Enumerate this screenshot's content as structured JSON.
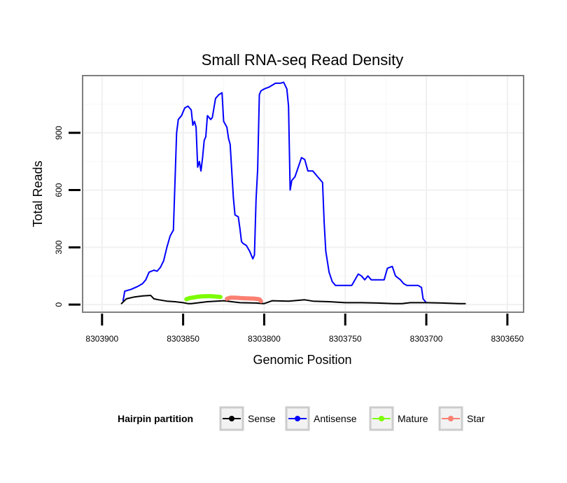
{
  "chart_data": {
    "type": "line",
    "title": "Small RNA-seq Read Density",
    "xlabel": "Genomic Position",
    "ylabel": "Total Reads",
    "x_reversed": true,
    "xlim": [
      8303912,
      8303640
    ],
    "ylim": [
      -40,
      1200
    ],
    "x_ticks": [
      8303900,
      8303850,
      8303800,
      8303750,
      8303700,
      8303650
    ],
    "y_ticks": [
      0,
      300,
      600,
      900
    ],
    "grid": true,
    "legend": {
      "title": "Hairpin partition",
      "position": "bottom",
      "entries": [
        {
          "label": "Sense",
          "color": "#000000"
        },
        {
          "label": "Antisense",
          "color": "#0000ff"
        },
        {
          "label": "Mature",
          "color": "#7cfc00"
        },
        {
          "label": "Star",
          "color": "#fa8072"
        }
      ]
    },
    "series": [
      {
        "name": "Antisense",
        "color": "#0000ff",
        "points": [
          [
            8303887,
            20
          ],
          [
            8303886,
            70
          ],
          [
            8303882,
            80
          ],
          [
            8303878,
            95
          ],
          [
            8303875,
            110
          ],
          [
            8303873,
            130
          ],
          [
            8303871,
            170
          ],
          [
            8303868,
            180
          ],
          [
            8303866,
            175
          ],
          [
            8303864,
            195
          ],
          [
            8303862,
            230
          ],
          [
            8303860,
            300
          ],
          [
            8303858,
            360
          ],
          [
            8303856,
            390
          ],
          [
            8303854,
            900
          ],
          [
            8303853,
            970
          ],
          [
            8303851,
            990
          ],
          [
            8303849,
            1030
          ],
          [
            8303847,
            1040
          ],
          [
            8303845,
            1020
          ],
          [
            8303844,
            940
          ],
          [
            8303843,
            960
          ],
          [
            8303842,
            930
          ],
          [
            8303841,
            720
          ],
          [
            8303840,
            750
          ],
          [
            8303839,
            700
          ],
          [
            8303838,
            770
          ],
          [
            8303837,
            860
          ],
          [
            8303836,
            880
          ],
          [
            8303835,
            990
          ],
          [
            8303833,
            970
          ],
          [
            8303832,
            980
          ],
          [
            8303830,
            1080
          ],
          [
            8303828,
            1100
          ],
          [
            8303826,
            1110
          ],
          [
            8303825,
            960
          ],
          [
            8303823,
            930
          ],
          [
            8303822,
            870
          ],
          [
            8303821,
            840
          ],
          [
            8303819,
            560
          ],
          [
            8303818,
            470
          ],
          [
            8303816,
            460
          ],
          [
            8303815,
            400
          ],
          [
            8303814,
            330
          ],
          [
            8303813,
            320
          ],
          [
            8303811,
            310
          ],
          [
            8303809,
            280
          ],
          [
            8303807,
            240
          ],
          [
            8303806,
            260
          ],
          [
            8303805,
            550
          ],
          [
            8303804,
            710
          ],
          [
            8303803,
            1100
          ],
          [
            8303802,
            1120
          ],
          [
            8303800,
            1130
          ],
          [
            8303797,
            1140
          ],
          [
            8303795,
            1150
          ],
          [
            8303793,
            1160
          ],
          [
            8303790,
            1160
          ],
          [
            8303788,
            1165
          ],
          [
            8303786,
            1130
          ],
          [
            8303785,
            1040
          ],
          [
            8303784,
            600
          ],
          [
            8303783,
            650
          ],
          [
            8303781,
            670
          ],
          [
            8303779,
            720
          ],
          [
            8303777,
            770
          ],
          [
            8303775,
            760
          ],
          [
            8303773,
            700
          ],
          [
            8303770,
            700
          ],
          [
            8303767,
            670
          ],
          [
            8303764,
            640
          ],
          [
            8303763,
            430
          ],
          [
            8303762,
            280
          ],
          [
            8303760,
            170
          ],
          [
            8303758,
            120
          ],
          [
            8303756,
            100
          ],
          [
            8303754,
            100
          ],
          [
            8303750,
            100
          ],
          [
            8303746,
            100
          ],
          [
            8303744,
            130
          ],
          [
            8303742,
            160
          ],
          [
            8303740,
            150
          ],
          [
            8303738,
            130
          ],
          [
            8303736,
            150
          ],
          [
            8303734,
            130
          ],
          [
            8303730,
            130
          ],
          [
            8303726,
            130
          ],
          [
            8303724,
            190
          ],
          [
            8303721,
            200
          ],
          [
            8303719,
            150
          ],
          [
            8303716,
            130
          ],
          [
            8303714,
            110
          ],
          [
            8303712,
            100
          ],
          [
            8303708,
            100
          ],
          [
            8303705,
            100
          ],
          [
            8303703,
            90
          ],
          [
            8303702,
            30
          ],
          [
            8303700,
            10
          ]
        ]
      },
      {
        "name": "Sense",
        "color": "#000000",
        "points": [
          [
            8303888,
            5
          ],
          [
            8303885,
            30
          ],
          [
            8303880,
            40
          ],
          [
            8303875,
            45
          ],
          [
            8303870,
            48
          ],
          [
            8303868,
            30
          ],
          [
            8303865,
            25
          ],
          [
            8303860,
            18
          ],
          [
            8303855,
            15
          ],
          [
            8303850,
            10
          ],
          [
            8303847,
            5
          ],
          [
            8303845,
            5
          ],
          [
            8303840,
            10
          ],
          [
            8303835,
            15
          ],
          [
            8303825,
            20
          ],
          [
            8303820,
            15
          ],
          [
            8303815,
            10
          ],
          [
            8303805,
            8
          ],
          [
            8303800,
            5
          ],
          [
            8303795,
            20
          ],
          [
            8303785,
            18
          ],
          [
            8303775,
            25
          ],
          [
            8303770,
            18
          ],
          [
            8303760,
            15
          ],
          [
            8303750,
            10
          ],
          [
            8303740,
            10
          ],
          [
            8303730,
            8
          ],
          [
            8303720,
            5
          ],
          [
            8303715,
            5
          ],
          [
            8303710,
            10
          ],
          [
            8303700,
            10
          ],
          [
            8303690,
            8
          ],
          [
            8303680,
            5
          ],
          [
            8303676,
            5
          ]
        ]
      },
      {
        "name": "Mature",
        "color": "#7cfc00",
        "points": [
          [
            8303848,
            28
          ],
          [
            8303846,
            34
          ],
          [
            8303843,
            38
          ],
          [
            8303840,
            42
          ],
          [
            8303836,
            44
          ],
          [
            8303833,
            44
          ],
          [
            8303830,
            42
          ],
          [
            8303827,
            40
          ]
        ]
      },
      {
        "name": "Star",
        "color": "#fa8072",
        "points": [
          [
            8303823,
            30
          ],
          [
            8303821,
            36
          ],
          [
            8303818,
            36
          ],
          [
            8303815,
            34
          ],
          [
            8303812,
            33
          ],
          [
            8303809,
            32
          ],
          [
            8303806,
            31
          ],
          [
            8303803,
            28
          ],
          [
            8303802,
            18
          ]
        ]
      }
    ]
  }
}
